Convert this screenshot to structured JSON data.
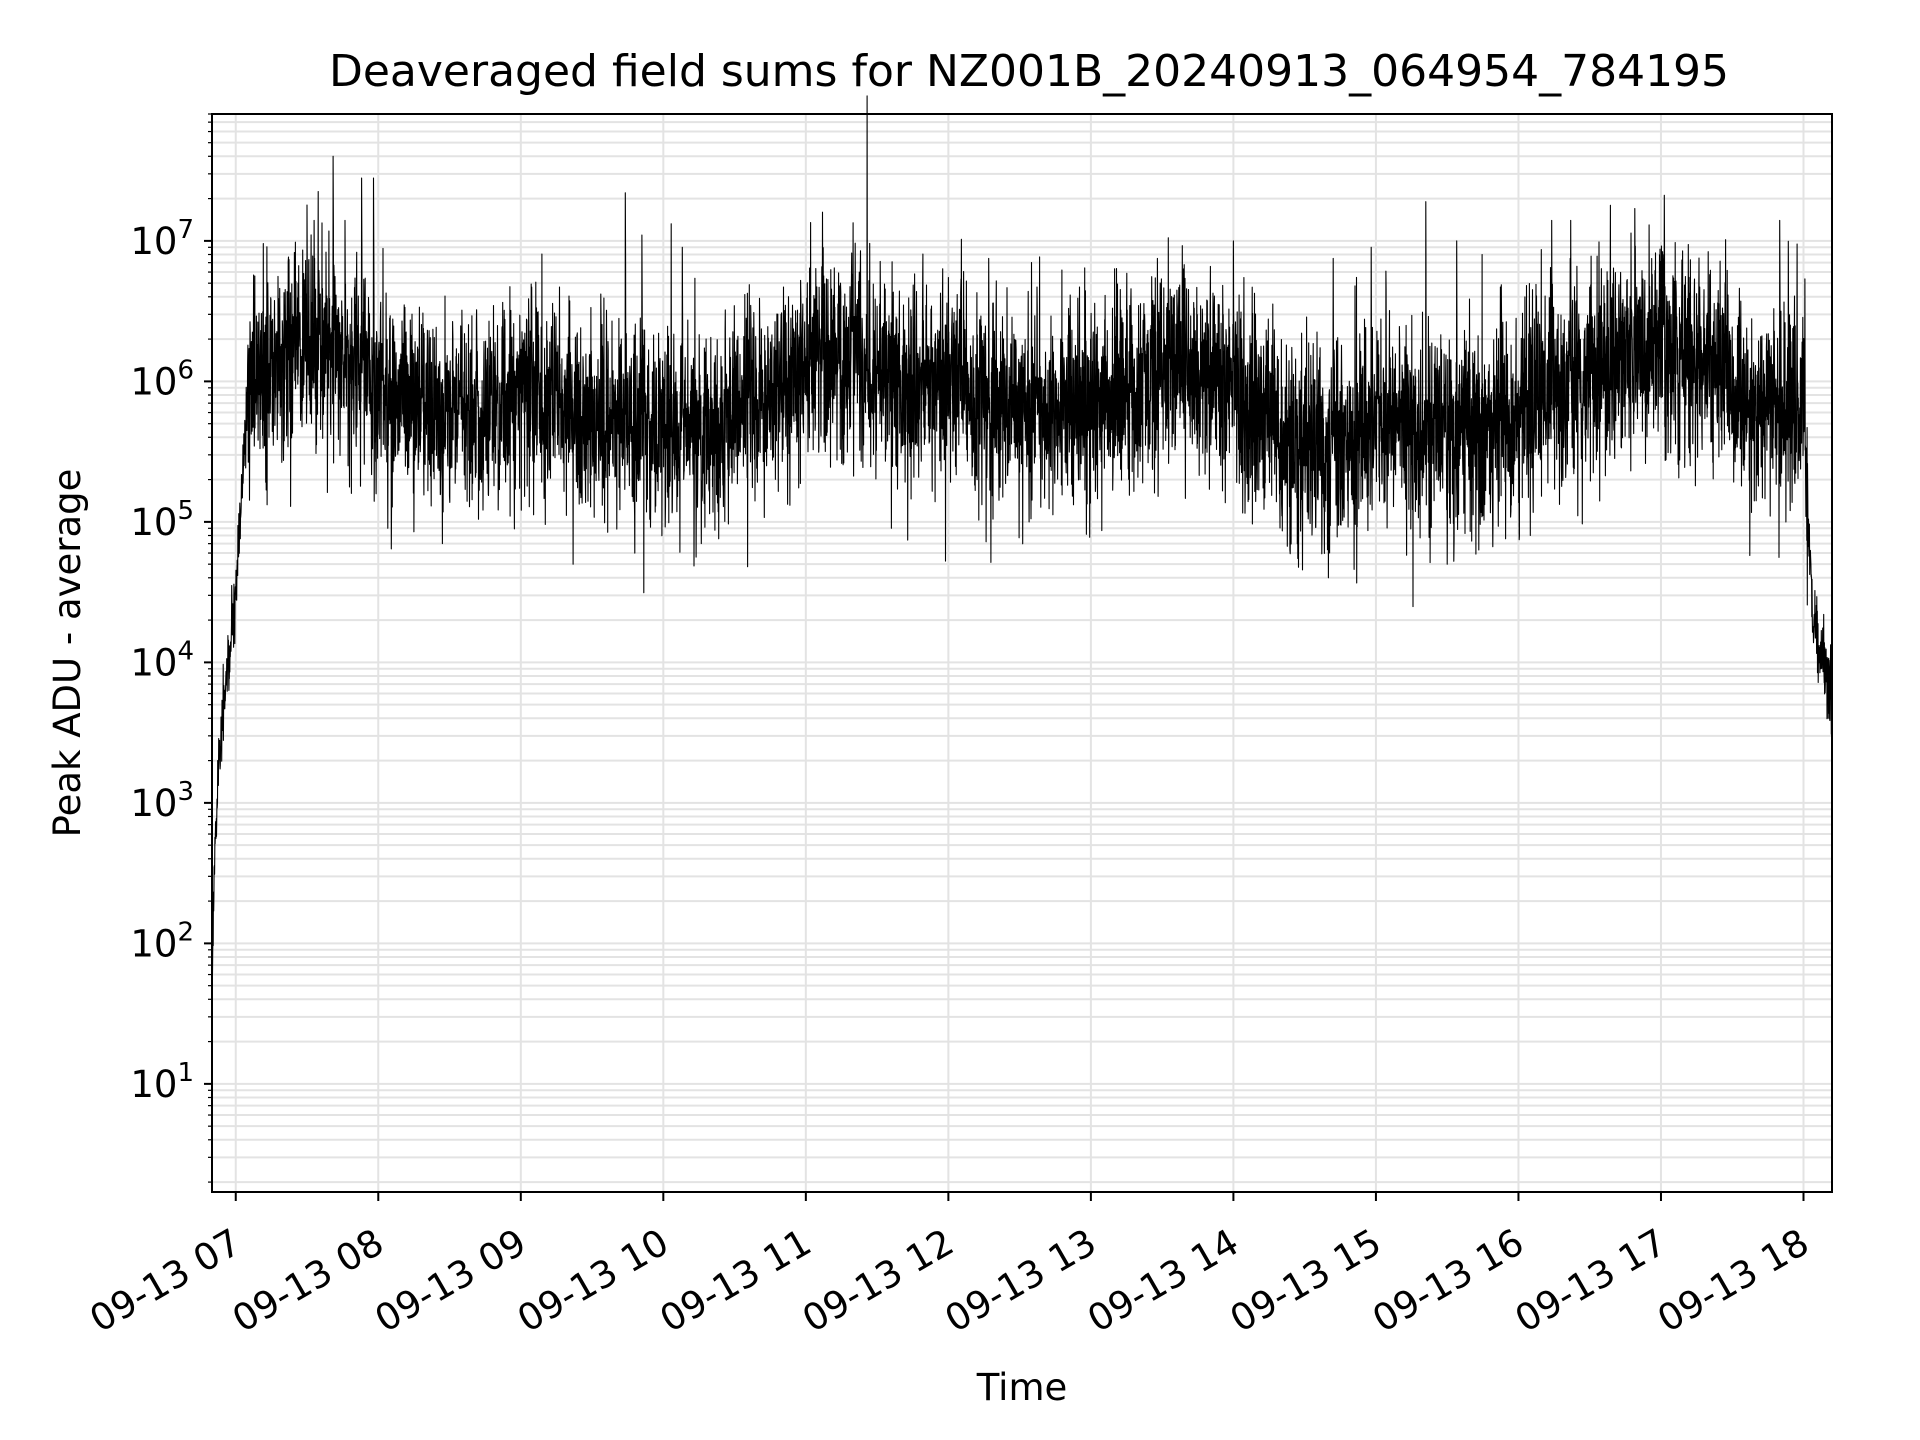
{
  "chart_data": {
    "type": "line",
    "title": "Deaveraged field sums for NZ001B_20240913_064954_784195",
    "xlabel": "Time",
    "ylabel": "Peak ADU - average",
    "yscale": "log",
    "ylim": [
      1.7,
      80000000
    ],
    "xlim": [
      "2024-09-13 06:50",
      "2024-09-13 18:12"
    ],
    "grid": true,
    "line_color": "#000000",
    "grid_color": "#e3e3e3",
    "y_ticks": [
      {
        "value": 10,
        "base": "10",
        "exp": "1"
      },
      {
        "value": 100,
        "base": "10",
        "exp": "2"
      },
      {
        "value": 1000,
        "base": "10",
        "exp": "3"
      },
      {
        "value": 10000,
        "base": "10",
        "exp": "4"
      },
      {
        "value": 100000,
        "base": "10",
        "exp": "5"
      },
      {
        "value": 1000000,
        "base": "10",
        "exp": "6"
      },
      {
        "value": 10000000,
        "base": "10",
        "exp": "7"
      }
    ],
    "x_ticks": [
      {
        "time": "2024-09-13 07:00",
        "label": "09-13 07"
      },
      {
        "time": "2024-09-13 08:00",
        "label": "09-13 08"
      },
      {
        "time": "2024-09-13 09:00",
        "label": "09-13 09"
      },
      {
        "time": "2024-09-13 10:00",
        "label": "09-13 10"
      },
      {
        "time": "2024-09-13 11:00",
        "label": "09-13 11"
      },
      {
        "time": "2024-09-13 12:00",
        "label": "09-13 12"
      },
      {
        "time": "2024-09-13 13:00",
        "label": "09-13 13"
      },
      {
        "time": "2024-09-13 14:00",
        "label": "09-13 14"
      },
      {
        "time": "2024-09-13 15:00",
        "label": "09-13 15"
      },
      {
        "time": "2024-09-13 16:00",
        "label": "09-13 16"
      },
      {
        "time": "2024-09-13 17:00",
        "label": "09-13 17"
      },
      {
        "time": "2024-09-13 18:00",
        "label": "09-13 18"
      }
    ],
    "series": [
      {
        "trend": {
          "x": [
            "2024-09-13 06:50",
            "2024-09-13 06:51",
            "2024-09-13 06:53",
            "2024-09-13 06:55",
            "2024-09-13 06:57",
            "2024-09-13 07:00",
            "2024-09-13 07:03",
            "2024-09-13 07:05",
            "2024-09-13 07:10",
            "2024-09-13 07:20",
            "2024-09-13 07:30",
            "2024-09-13 07:45",
            "2024-09-13 08:00",
            "2024-09-13 08:20",
            "2024-09-13 08:40",
            "2024-09-13 09:00",
            "2024-09-13 09:20",
            "2024-09-13 09:40",
            "2024-09-13 10:00",
            "2024-09-13 10:20",
            "2024-09-13 10:40",
            "2024-09-13 11:00",
            "2024-09-13 11:20",
            "2024-09-13 11:40",
            "2024-09-13 12:00",
            "2024-09-13 12:20",
            "2024-09-13 12:40",
            "2024-09-13 13:00",
            "2024-09-13 13:20",
            "2024-09-13 13:40",
            "2024-09-13 14:00",
            "2024-09-13 14:20",
            "2024-09-13 14:40",
            "2024-09-13 15:00",
            "2024-09-13 15:20",
            "2024-09-13 15:40",
            "2024-09-13 16:00",
            "2024-09-13 16:10",
            "2024-09-13 16:20",
            "2024-09-13 16:40",
            "2024-09-13 17:00",
            "2024-09-13 17:20",
            "2024-09-13 17:40",
            "2024-09-13 17:55",
            "2024-09-13 18:00",
            "2024-09-13 18:02",
            "2024-09-13 18:04",
            "2024-09-13 18:07",
            "2024-09-13 18:10",
            "2024-09-13 18:12"
          ],
          "y": [
            60,
            400,
            2000,
            5000,
            10000,
            30000,
            200000,
            800000,
            1200000,
            1400000,
            1600000,
            1500000,
            1000000,
            700000,
            600000,
            800000,
            700000,
            500000,
            500000,
            450000,
            700000,
            1400000,
            1500000,
            1000000,
            1000000,
            700000,
            600000,
            700000,
            1000000,
            1400000,
            900000,
            400000,
            350000,
            500000,
            450000,
            450000,
            500000,
            800000,
            1000000,
            1500000,
            2000000,
            1200000,
            700000,
            700000,
            700000,
            100000,
            20000,
            12000,
            8000,
            6000
          ]
        },
        "noise_sigma_decades": 0.36,
        "spike_tops": [
          {
            "x": "2024-09-13 07:30",
            "y": 18000000
          },
          {
            "x": "2024-09-13 07:33",
            "y": 14000000
          },
          {
            "x": "2024-09-13 07:41",
            "y": 40000000
          },
          {
            "x": "2024-09-13 07:46",
            "y": 14000000
          },
          {
            "x": "2024-09-13 07:53",
            "y": 28000000
          },
          {
            "x": "2024-09-13 07:58",
            "y": 28000000
          },
          {
            "x": "2024-09-13 09:44",
            "y": 22000000
          },
          {
            "x": "2024-09-13 09:51",
            "y": 11000000
          },
          {
            "x": "2024-09-13 10:08",
            "y": 9000000
          },
          {
            "x": "2024-09-13 11:07",
            "y": 16000000
          },
          {
            "x": "2024-09-13 11:23",
            "y": 8500000
          },
          {
            "x": "2024-09-13 12:17",
            "y": 7500000
          },
          {
            "x": "2024-09-13 12:35",
            "y": 7000000
          },
          {
            "x": "2024-09-13 13:28",
            "y": 7500000
          },
          {
            "x": "2024-09-13 14:00",
            "y": 10000000
          },
          {
            "x": "2024-09-13 14:42",
            "y": 7500000
          },
          {
            "x": "2024-09-13 14:58",
            "y": 9000000
          },
          {
            "x": "2024-09-13 15:21",
            "y": 19000000
          },
          {
            "x": "2024-09-13 15:34",
            "y": 10000000
          },
          {
            "x": "2024-09-13 16:14",
            "y": 14000000
          },
          {
            "x": "2024-09-13 16:22",
            "y": 14000000
          },
          {
            "x": "2024-09-13 16:49",
            "y": 17000000
          },
          {
            "x": "2024-09-13 16:55",
            "y": 13000000
          },
          {
            "x": "2024-09-13 17:50",
            "y": 14000000
          }
        ],
        "dip_bottoms": [
          {
            "x": "2024-09-13 07:14",
            "y": 400000
          },
          {
            "x": "2024-09-13 08:04",
            "y": 90000
          },
          {
            "x": "2024-09-13 08:15",
            "y": 85000
          },
          {
            "x": "2024-09-13 08:27",
            "y": 70000
          },
          {
            "x": "2024-09-13 09:22",
            "y": 50000
          },
          {
            "x": "2024-09-13 09:48",
            "y": 60000
          },
          {
            "x": "2024-09-13 10:16",
            "y": 70000
          },
          {
            "x": "2024-09-13 11:36",
            "y": 90000
          },
          {
            "x": "2024-09-13 12:34",
            "y": 100000
          },
          {
            "x": "2024-09-13 14:40",
            "y": 40000
          },
          {
            "x": "2024-09-13 15:30",
            "y": 50000
          },
          {
            "x": "2024-09-13 16:05",
            "y": 80000
          },
          {
            "x": "2024-09-13 17:46",
            "y": 110000
          }
        ]
      }
    ]
  }
}
